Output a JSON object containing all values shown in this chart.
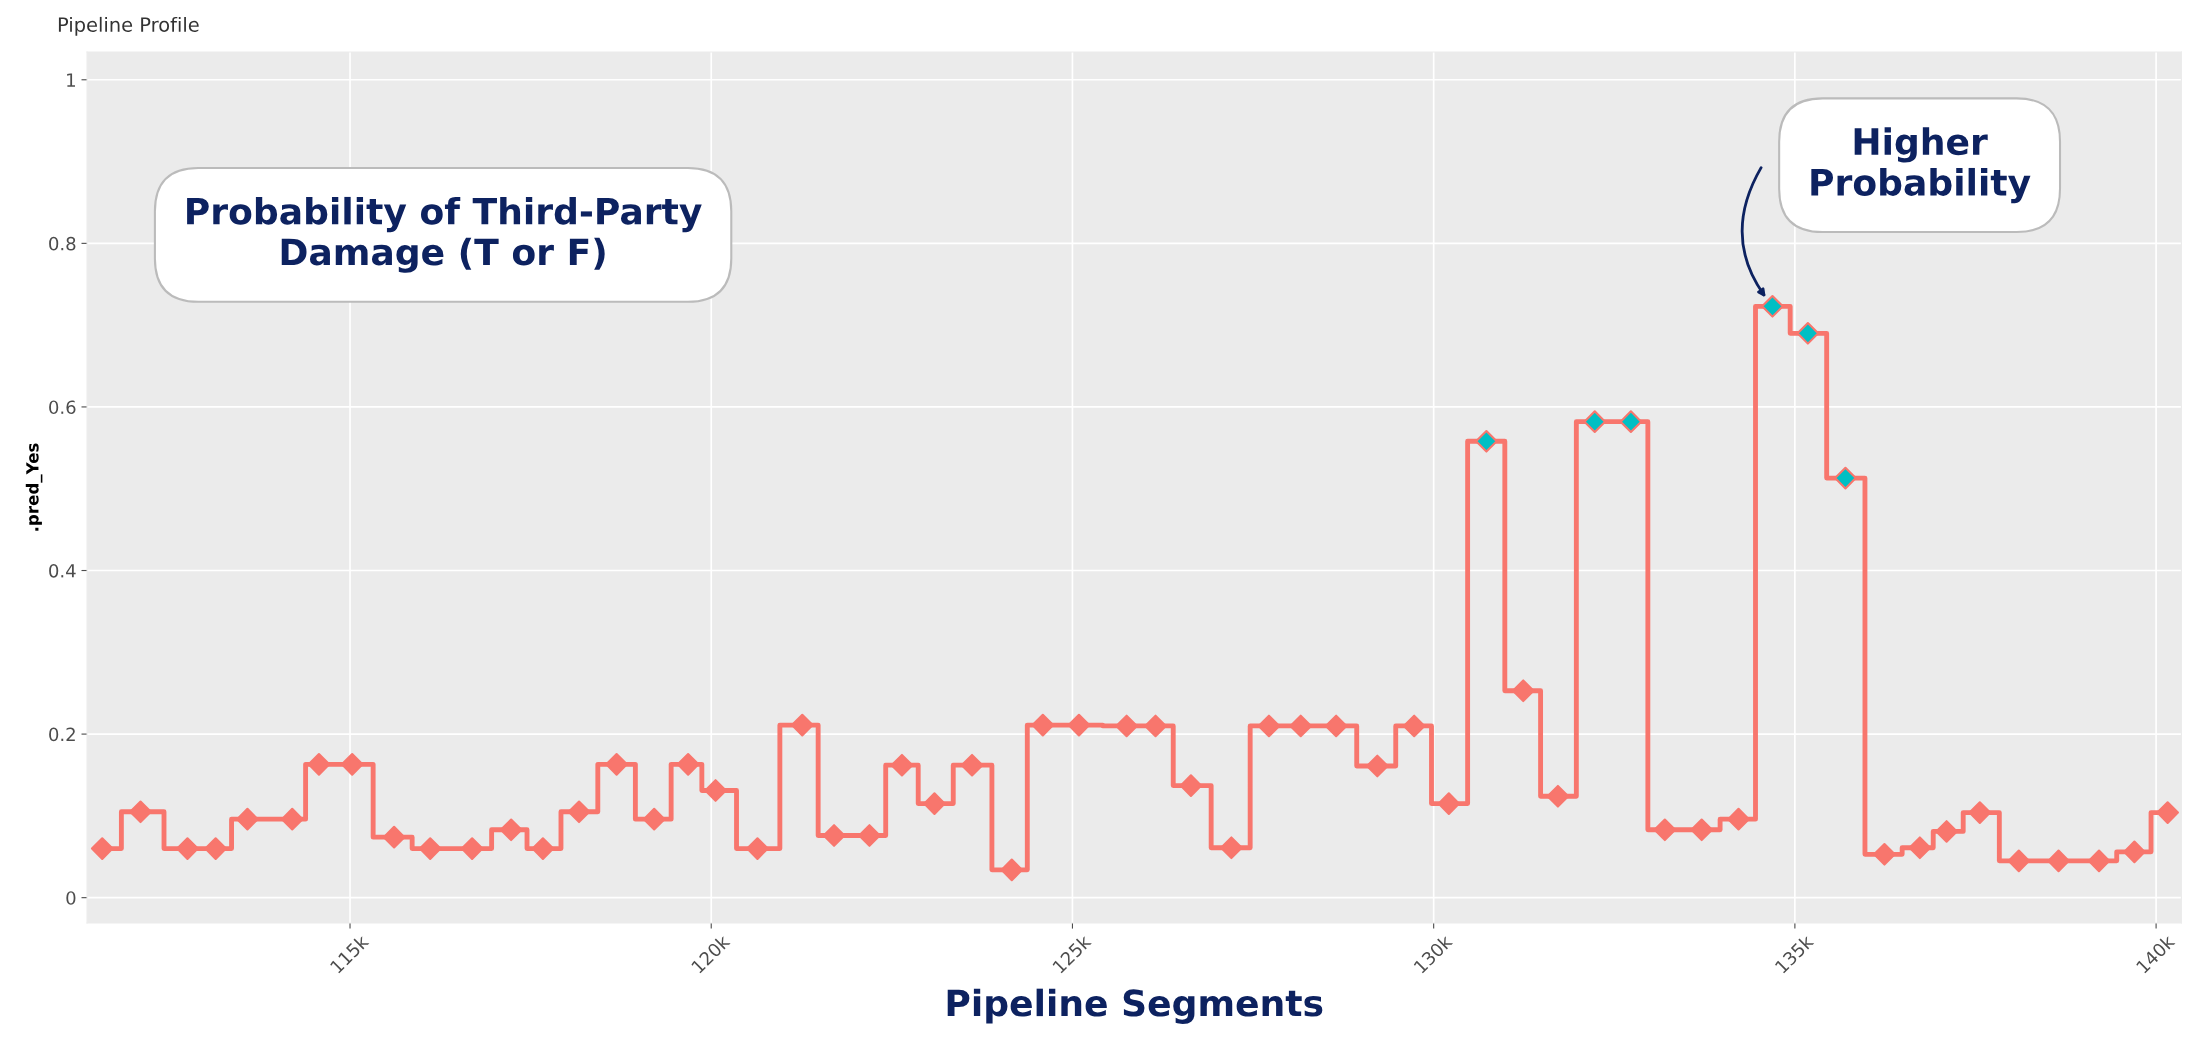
{
  "chart_data": {
    "type": "step",
    "title": "Pipeline Profile",
    "xlabel": "Pipeline Segments",
    "ylabel": ".pred_Yes",
    "x": [
      111570,
      112100,
      112750,
      113140,
      113580,
      114200,
      114570,
      115030,
      115610,
      116110,
      116690,
      117230,
      117670,
      118170,
      118690,
      119210,
      119680,
      120060,
      120640,
      121260,
      121700,
      122190,
      122640,
      123090,
      123610,
      124160,
      124590,
      125090,
      125750,
      126150,
      126640,
      127200,
      127720,
      128160,
      128650,
      129220,
      129730,
      130210,
      130730,
      131240,
      131720,
      132230,
      132730,
      133200,
      133710,
      134220,
      134690,
      135180,
      135700,
      136240,
      136730,
      137100,
      137560,
      138100,
      138650,
      139210,
      139700,
      140160
    ],
    "series": [
      {
        "color": "#f8766d",
        "values": [
          0.06,
          0.105,
          0.06,
          0.06,
          0.096,
          0.096,
          0.163,
          0.163,
          0.074,
          0.06,
          0.06,
          0.083,
          0.06,
          0.105,
          0.163,
          0.096,
          0.163,
          0.131,
          0.06,
          0.211,
          0.076,
          0.076,
          0.162,
          0.115,
          0.162,
          0.034,
          0.211,
          0.211,
          0.21,
          0.21,
          0.137,
          0.061,
          0.21,
          0.21,
          0.21,
          0.161,
          0.21,
          0.115,
          0.558,
          0.253,
          0.124,
          0.582,
          0.582,
          0.083,
          0.083,
          0.096,
          0.723,
          0.69,
          0.513,
          0.053,
          0.061,
          0.081,
          0.104,
          0.045,
          0.045,
          0.045,
          0.056,
          0.104
        ],
        "colors": [
          "#f8766d",
          "#f8766d",
          "#f8766d",
          "#f8766d",
          "#f8766d",
          "#f8766d",
          "#f8766d",
          "#f8766d",
          "#f8766d",
          "#f8766d",
          "#f8766d",
          "#f8766d",
          "#f8766d",
          "#f8766d",
          "#f8766d",
          "#f8766d",
          "#f8766d",
          "#f8766d",
          "#f8766d",
          "#f8766d",
          "#f8766d",
          "#f8766d",
          "#f8766d",
          "#f8766d",
          "#f8766d",
          "#f8766d",
          "#f8766d",
          "#f8766d",
          "#f8766d",
          "#f8766d",
          "#f8766d",
          "#f8766d",
          "#f8766d",
          "#f8766d",
          "#f8766d",
          "#f8766d",
          "#f8766d",
          "#f8766d",
          "#00bfc4",
          "#f8766d",
          "#f8766d",
          "#00bfc4",
          "#00bfc4",
          "#f8766d",
          "#f8766d",
          "#f8766d",
          "#00bfc4",
          "#00bfc4",
          "#00bfc4",
          "#f8766d",
          "#f8766d",
          "#f8766d",
          "#f8766d",
          "#f8766d",
          "#f8766d",
          "#f8766d",
          "#f8766d",
          "#f8766d"
        ]
      }
    ],
    "xlim": [
      111360,
      140350
    ],
    "ylim": [
      -0.031,
      1.034
    ],
    "xticks": [
      {
        "value": 115000,
        "label": "115k"
      },
      {
        "value": 120000,
        "label": "120k"
      },
      {
        "value": 125000,
        "label": "125k"
      },
      {
        "value": 130000,
        "label": "130k"
      },
      {
        "value": 135000,
        "label": "135k"
      },
      {
        "value": 140000,
        "label": "140k"
      }
    ],
    "yticks": [
      0,
      0.2,
      0.4,
      0.6,
      0.8,
      1
    ],
    "grid": true,
    "marker": "diamond",
    "line_style": "solid",
    "annotations": [
      "Probability of Third-Party\nDamage (T or F)",
      "Higher\nProbability"
    ]
  }
}
